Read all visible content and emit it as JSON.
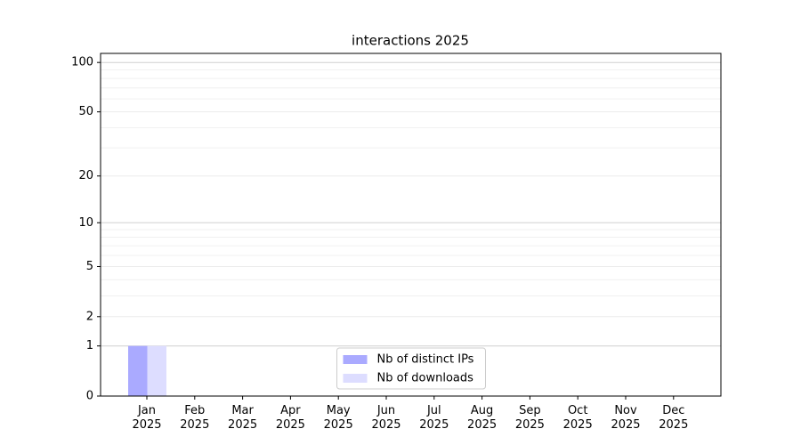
{
  "chart_data": {
    "type": "bar",
    "title": "interactions 2025",
    "categories": [
      "Jan\n2025",
      "Feb\n2025",
      "Mar\n2025",
      "Apr\n2025",
      "May\n2025",
      "Jun\n2025",
      "Jul\n2025",
      "Aug\n2025",
      "Sep\n2025",
      "Oct\n2025",
      "Nov\n2025",
      "Dec\n2025"
    ],
    "series": [
      {
        "name": "Nb of distinct IPs",
        "color": "#aaaaff",
        "values": [
          1,
          0,
          0,
          0,
          0,
          0,
          0,
          0,
          0,
          0,
          0,
          0
        ]
      },
      {
        "name": "Nb of downloads",
        "color": "#ddddff",
        "values": [
          1,
          0,
          0,
          0,
          0,
          0,
          0,
          0,
          0,
          0,
          0,
          0
        ]
      }
    ],
    "yscale": "log1p",
    "ylim": [
      0,
      113.5
    ],
    "yticks": [
      0,
      1,
      2,
      5,
      10,
      20,
      50,
      100
    ],
    "minor_yticks": [
      3,
      4,
      6,
      7,
      8,
      9,
      30,
      40,
      60,
      70,
      80,
      90
    ],
    "grid": true,
    "legend": "lower center"
  }
}
